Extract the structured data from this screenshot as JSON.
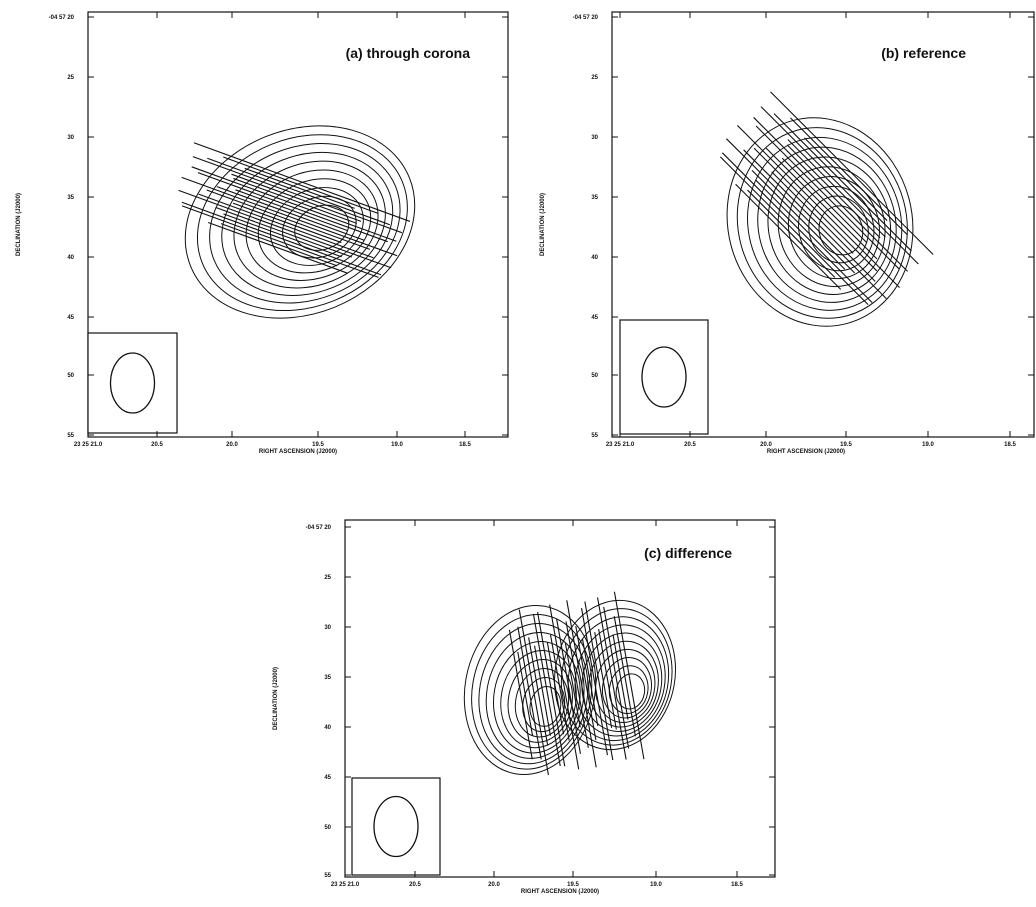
{
  "panels": [
    {
      "label": "(a) through corona",
      "ylabel": "DECLINATION (J2000)",
      "xlabel": "RIGHT ASCENSION (J2000)",
      "yticks": [
        "-04 57 20",
        "25",
        "30",
        "35",
        "40",
        "45",
        "50",
        "55"
      ],
      "xticks": [
        "23 25 21.0",
        "20.5",
        "20.0",
        "19.5",
        "19.0",
        "18.5"
      ]
    },
    {
      "label": "(b) reference",
      "ylabel": "DECLINATION (J2000)",
      "xlabel": "RIGHT ASCENSION (J2000)",
      "yticks": [
        "-04 57 20",
        "25",
        "30",
        "35",
        "40",
        "45",
        "50",
        "55"
      ],
      "xticks": [
        "23 25 21.0",
        "20.5",
        "20.0",
        "19.5",
        "19.0",
        "18.5"
      ]
    },
    {
      "label": "(c) difference",
      "ylabel": "DECLINATION (J2000)",
      "xlabel": "RIGHT ASCENSION (J2000)",
      "yticks": [
        "-04 57 20",
        "25",
        "30",
        "35",
        "40",
        "45",
        "50",
        "55"
      ],
      "xticks": [
        "23 25 21.0",
        "20.5",
        "20.0",
        "19.5",
        "19.0",
        "18.5"
      ]
    }
  ]
}
